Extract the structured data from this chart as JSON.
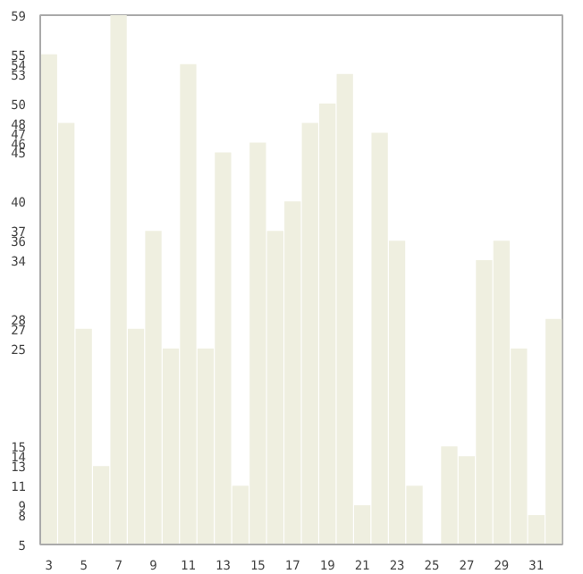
{
  "chart_data": {
    "type": "bar",
    "x": [
      3,
      4,
      5,
      6,
      7,
      8,
      9,
      10,
      11,
      12,
      13,
      14,
      15,
      16,
      17,
      18,
      19,
      20,
      21,
      22,
      23,
      24,
      25,
      26,
      27,
      28,
      29,
      30,
      31,
      32
    ],
    "values": [
      55,
      48,
      27,
      13,
      59,
      27,
      37,
      25,
      54,
      25,
      45,
      11,
      46,
      37,
      40,
      48,
      50,
      53,
      9,
      47,
      36,
      11,
      5,
      15,
      14,
      34,
      36,
      25,
      8,
      28
    ],
    "color": "#efefe0",
    "xlim": [
      2.5,
      32.5
    ],
    "xticks": [
      3,
      5,
      7,
      9,
      11,
      13,
      15,
      17,
      19,
      21,
      23,
      25,
      27,
      29,
      31
    ],
    "ylim": [
      5,
      59
    ],
    "yticks": [
      5,
      8,
      9,
      11,
      13,
      14,
      15,
      25,
      27,
      28,
      34,
      36,
      37,
      40,
      45,
      46,
      47,
      48,
      50,
      53,
      54,
      55,
      59
    ],
    "grid": false
  }
}
